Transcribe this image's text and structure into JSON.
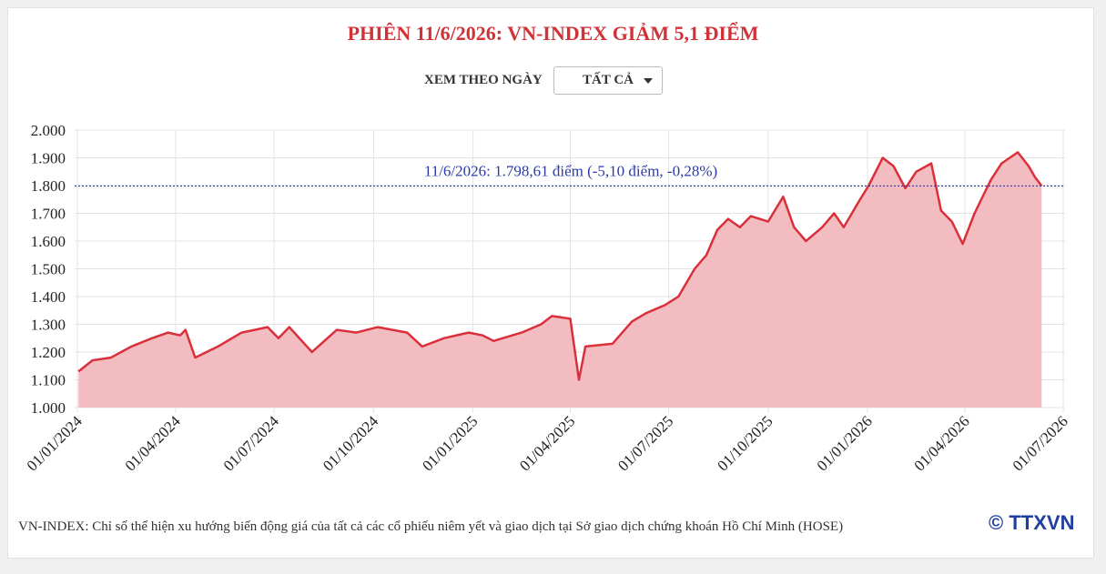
{
  "chart_data": {
    "type": "area",
    "title": "PHIÊN 11/6/2026: VN-INDEX GIẢM 5,1 ĐIỂM",
    "x": [
      "02/01/2024",
      "15/01/2024",
      "01/02/2024",
      "20/02/2024",
      "10/03/2024",
      "25/03/2024",
      "05/04/2024",
      "10/04/2024",
      "19/04/2024",
      "10/05/2024",
      "01/06/2024",
      "25/06/2024",
      "05/07/2024",
      "15/07/2024",
      "05/08/2024",
      "28/08/2024",
      "15/09/2024",
      "05/10/2024",
      "01/11/2024",
      "15/11/2024",
      "05/12/2024",
      "28/12/2024",
      "10/01/2025",
      "20/01/2025",
      "15/02/2025",
      "05/03/2025",
      "15/03/2025",
      "01/04/2025",
      "09/04/2025",
      "15/04/2025",
      "10/05/2025",
      "28/05/2025",
      "10/06/2025",
      "28/06/2025",
      "10/07/2025",
      "25/07/2025",
      "05/08/2025",
      "15/08/2025",
      "25/08/2025",
      "05/09/2025",
      "15/09/2025",
      "01/10/2025",
      "15/10/2025",
      "25/10/2025",
      "05/11/2025",
      "20/11/2025",
      "01/12/2025",
      "10/12/2025",
      "25/12/2025",
      "02/01/2026",
      "15/01/2026",
      "25/01/2026",
      "05/02/2026",
      "15/02/2026",
      "01/03/2026",
      "10/03/2026",
      "20/03/2026",
      "30/03/2026",
      "10/04/2026",
      "25/04/2026",
      "05/05/2026",
      "20/05/2026",
      "30/05/2026",
      "05/06/2026",
      "11/06/2026"
    ],
    "series": [
      {
        "name": "VN-INDEX",
        "color": "#d9303b",
        "fill": "#f3bcc0",
        "values": [
          1130,
          1170,
          1180,
          1220,
          1250,
          1270,
          1260,
          1280,
          1180,
          1220,
          1270,
          1290,
          1250,
          1290,
          1200,
          1280,
          1270,
          1290,
          1270,
          1220,
          1250,
          1270,
          1260,
          1240,
          1270,
          1300,
          1330,
          1320,
          1100,
          1220,
          1230,
          1310,
          1340,
          1370,
          1400,
          1500,
          1550,
          1640,
          1680,
          1650,
          1690,
          1670,
          1760,
          1650,
          1600,
          1650,
          1700,
          1650,
          1750,
          1800,
          1900,
          1870,
          1790,
          1850,
          1880,
          1710,
          1670,
          1590,
          1700,
          1820,
          1880,
          1920,
          1870,
          1830,
          1798.61
        ]
      }
    ],
    "xlim": [
      "01/01/2024",
      "01/07/2026"
    ],
    "xticks": [
      "01/01/2024",
      "01/04/2024",
      "01/07/2024",
      "01/10/2024",
      "01/01/2025",
      "01/04/2025",
      "01/07/2025",
      "01/10/2025",
      "01/01/2026",
      "01/04/2026",
      "01/07/2026"
    ],
    "ylim": [
      1000,
      2000
    ],
    "yticks": [
      {
        "value": 1000,
        "label": "1.000"
      },
      {
        "value": 1100,
        "label": "1.100"
      },
      {
        "value": 1200,
        "label": "1.200"
      },
      {
        "value": 1300,
        "label": "1.300"
      },
      {
        "value": 1400,
        "label": "1.400"
      },
      {
        "value": 1500,
        "label": "1.500"
      },
      {
        "value": 1600,
        "label": "1.600"
      },
      {
        "value": 1700,
        "label": "1.700"
      },
      {
        "value": 1800,
        "label": "1.800"
      },
      {
        "value": 1900,
        "label": "1.900"
      },
      {
        "value": 2000,
        "label": "2.000"
      }
    ],
    "grid": true,
    "reference_line": {
      "value": 1798.61,
      "label": "11/6/2026: 1.798,61 điểm (-5,10 điểm, -0,28%)",
      "color": "#2b3aa8"
    },
    "controls": {
      "label": "XEM THEO NGÀY",
      "dropdown": "TẤT CẢ"
    },
    "footnote": "VN-INDEX: Chỉ số thể hiện xu hướng biến động giá của tất cả các cổ phiếu niêm yết và giao dịch tại Sở giao dịch chứng khoán Hồ Chí Minh (HOSE)",
    "logo_symbol": "©",
    "logo": "TTXVN"
  }
}
